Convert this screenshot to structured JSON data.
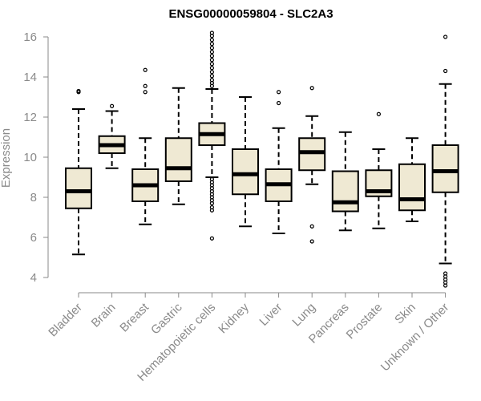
{
  "chart_data": {
    "type": "boxplot",
    "title": "ENSG00000059804 - SLC2A3",
    "xlabel": "",
    "ylabel": "Expression",
    "ylim": [
      3.5,
      16.4
    ],
    "yticks": [
      4,
      6,
      8,
      10,
      12,
      14,
      16
    ],
    "box_color": "#efe9d3",
    "line_color": "#000000",
    "axis_color": "#8a8a8a",
    "categories": [
      "Bladder",
      "Brain",
      "Breast",
      "Gastric",
      "Hematopoietic cells",
      "Kidney",
      "Liver",
      "Lung",
      "Pancreas",
      "Prostate",
      "Skin",
      "Unknown / Other"
    ],
    "series": [
      {
        "name": "Bladder",
        "whisker_low": 5.15,
        "q1": 7.45,
        "median": 8.3,
        "q3": 9.45,
        "whisker_high": 12.4,
        "outliers": [
          13.25,
          13.3
        ]
      },
      {
        "name": "Brain",
        "whisker_low": 9.45,
        "q1": 10.2,
        "median": 10.6,
        "q3": 11.05,
        "whisker_high": 12.3,
        "outliers": [
          12.55
        ]
      },
      {
        "name": "Breast",
        "whisker_low": 6.65,
        "q1": 7.8,
        "median": 8.6,
        "q3": 9.4,
        "whisker_high": 10.95,
        "outliers": [
          13.25,
          13.55,
          14.35
        ]
      },
      {
        "name": "Gastric",
        "whisker_low": 7.65,
        "q1": 8.8,
        "median": 9.45,
        "q3": 10.95,
        "whisker_high": 13.45,
        "outliers": []
      },
      {
        "name": "Hematopoietic cells",
        "whisker_low": 9.0,
        "q1": 10.6,
        "median": 11.15,
        "q3": 11.7,
        "whisker_high": 13.4,
        "outliers": [
          5.95,
          7.35,
          7.5,
          7.7,
          7.85,
          8.0,
          8.15,
          8.3,
          8.45,
          8.6,
          8.75,
          8.9,
          13.55,
          13.7,
          13.85,
          14.05,
          14.25,
          14.45,
          14.65,
          14.85,
          15.05,
          15.25,
          15.45,
          15.65,
          15.85,
          16.05,
          16.2
        ]
      },
      {
        "name": "Kidney",
        "whisker_low": 6.55,
        "q1": 8.15,
        "median": 9.15,
        "q3": 10.4,
        "whisker_high": 13.0,
        "outliers": []
      },
      {
        "name": "Liver",
        "whisker_low": 6.2,
        "q1": 7.8,
        "median": 8.65,
        "q3": 9.4,
        "whisker_high": 11.45,
        "outliers": [
          12.7,
          13.25
        ]
      },
      {
        "name": "Lung",
        "whisker_low": 8.65,
        "q1": 9.35,
        "median": 10.25,
        "q3": 10.95,
        "whisker_high": 12.05,
        "outliers": [
          5.8,
          6.55,
          13.45
        ]
      },
      {
        "name": "Pancreas",
        "whisker_low": 6.35,
        "q1": 7.3,
        "median": 7.75,
        "q3": 9.3,
        "whisker_high": 11.25,
        "outliers": []
      },
      {
        "name": "Prostate",
        "whisker_low": 6.45,
        "q1": 8.05,
        "median": 8.3,
        "q3": 9.35,
        "whisker_high": 10.4,
        "outliers": [
          12.15
        ]
      },
      {
        "name": "Skin",
        "whisker_low": 6.8,
        "q1": 7.35,
        "median": 7.9,
        "q3": 9.65,
        "whisker_high": 10.95,
        "outliers": []
      },
      {
        "name": "Unknown / Other",
        "whisker_low": 4.7,
        "q1": 8.25,
        "median": 9.3,
        "q3": 10.6,
        "whisker_high": 13.65,
        "outliers": [
          3.6,
          3.75,
          3.9,
          4.05,
          4.2,
          14.3,
          16.0
        ]
      }
    ]
  }
}
